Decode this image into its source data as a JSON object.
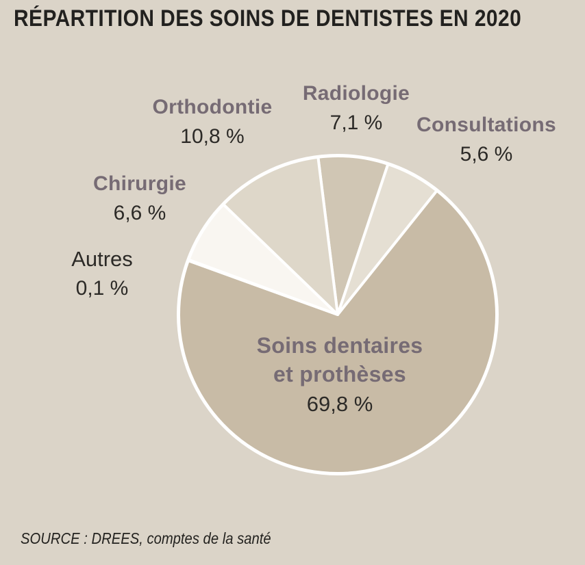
{
  "title": "RÉPARTITION DES SOINS DE DENTISTES EN 2020",
  "source": "SOURCE : DREES, comptes de la santé",
  "colors": {
    "background": "#dbd4c8",
    "slice_stroke": "#ffffff",
    "label_name": "#766b74",
    "label_value": "#2c2a27",
    "title_text": "#22211f"
  },
  "chart_data": {
    "type": "pie",
    "title": "Répartition des soins de dentistes en 2020",
    "start_angle_deg": -7.1,
    "direction": "clockwise",
    "legend_position": "around-slices",
    "slices": [
      {
        "label": "Radiologie",
        "value_pct": 7.1,
        "display_value": "7,1 %",
        "color": "#d0c6b4"
      },
      {
        "label": "Consultations",
        "value_pct": 5.6,
        "display_value": "5,6 %",
        "color": "#e5dfd3"
      },
      {
        "label": "Soins dentaires et prothèses",
        "label_lines": [
          "Soins dentaires",
          "et prothèses"
        ],
        "value_pct": 69.8,
        "display_value": "69,8 %",
        "color": "#c8bba6"
      },
      {
        "label": "Autres",
        "value_pct": 0.1,
        "display_value": "0,1 %",
        "color": "#f9f6f1"
      },
      {
        "label": "Chirurgie",
        "value_pct": 6.6,
        "display_value": "6,6 %",
        "color": "#f9f6f1"
      },
      {
        "label": "Orthodontie",
        "value_pct": 10.8,
        "display_value": "10,8 %",
        "color": "#ded7c9"
      }
    ]
  }
}
